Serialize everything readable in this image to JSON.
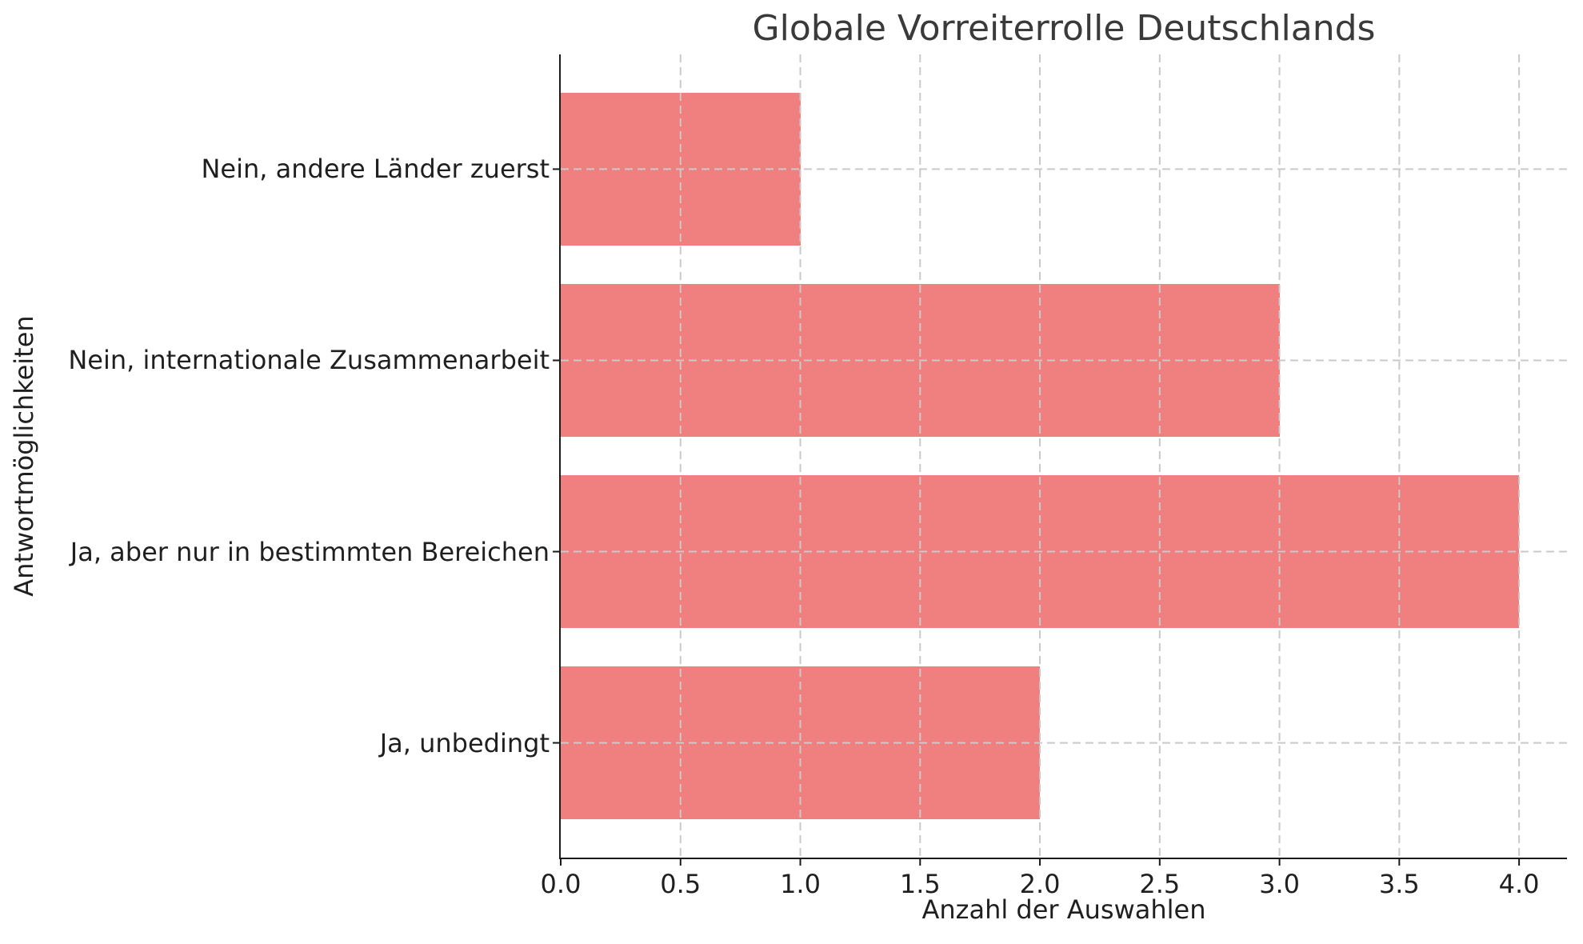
{
  "chart_data": {
    "type": "bar",
    "orientation": "horizontal",
    "title": "Globale Vorreiterrolle Deutschlands",
    "xlabel": "Anzahl der Auswahlen",
    "ylabel": "Antwortmöglichkeiten",
    "categories": [
      "Nein, andere Länder zuerst",
      "Nein, internationale Zusammenarbeit",
      "Ja, aber nur in bestimmten Bereichen",
      "Ja, unbedingt"
    ],
    "values": [
      1,
      3,
      4,
      2
    ],
    "xlim": [
      0.0,
      4.2
    ],
    "xticks": [
      0.0,
      0.5,
      1.0,
      1.5,
      2.0,
      2.5,
      3.0,
      3.5,
      4.0
    ],
    "xtick_labels": [
      "0.0",
      "0.5",
      "1.0",
      "1.5",
      "2.0",
      "2.5",
      "3.0",
      "3.5",
      "4.0"
    ],
    "bar_height_fraction": 0.8,
    "grid": true,
    "grid_style": "dashed",
    "legend": false,
    "colors": {
      "bar": "#F08080",
      "grid": "#c9c9c9",
      "spine": "#1a1a1a",
      "title_text": "#3a3a3a",
      "label_text": "#1f1f1f",
      "background": "#ffffff"
    }
  }
}
